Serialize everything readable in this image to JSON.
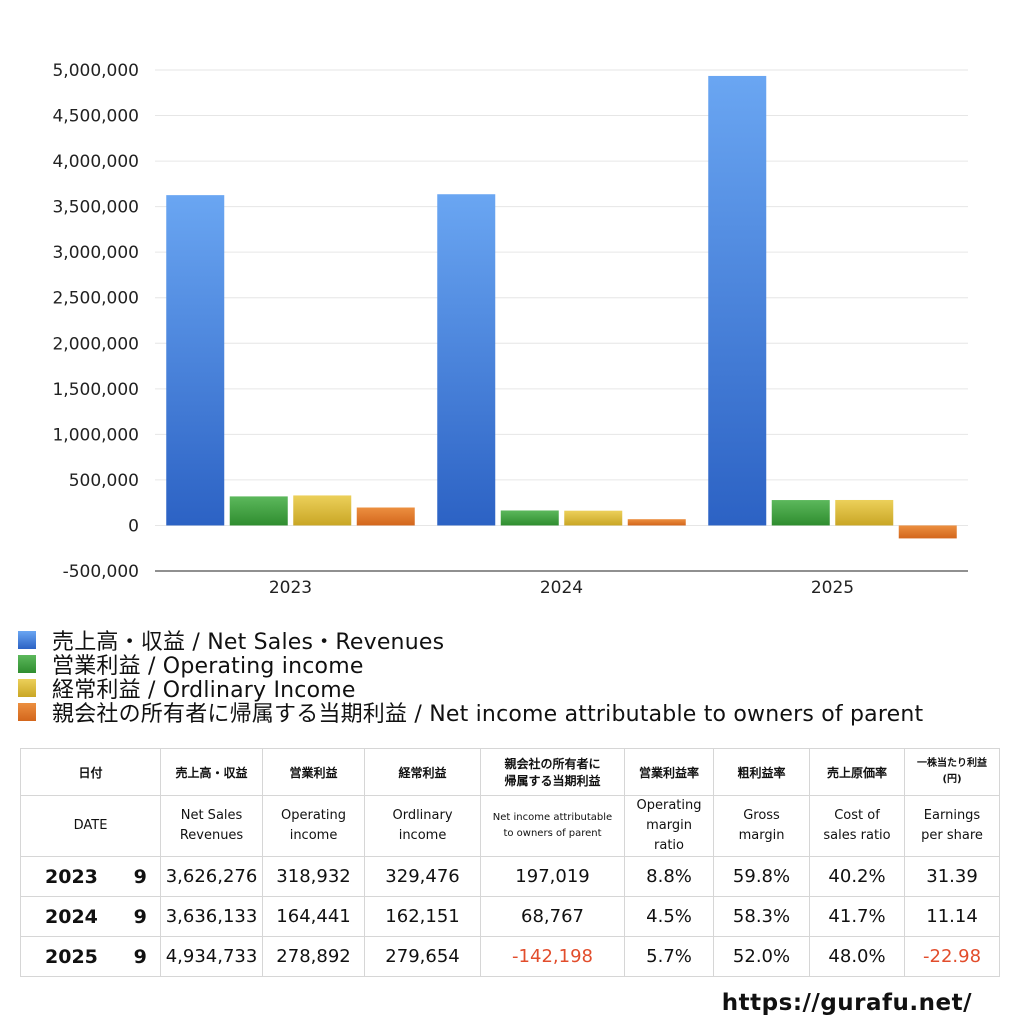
{
  "chart_data": {
    "type": "bar",
    "categories": [
      "2023",
      "2024",
      "2025"
    ],
    "series": [
      {
        "name": "売上高・収益 / Net Sales・Revenues",
        "values": [
          3626276,
          3636133,
          4934733
        ],
        "color_top": "#6aa6f2",
        "color_bottom": "#2c62c4"
      },
      {
        "name": "営業利益 / Operating income",
        "values": [
          318932,
          164441,
          278892
        ],
        "color_top": "#5cb85c",
        "color_bottom": "#2f8d2f"
      },
      {
        "name": "経常利益 / Ordlinary Income",
        "values": [
          329476,
          162151,
          279654
        ],
        "color_top": "#ecd05a",
        "color_bottom": "#c9a625"
      },
      {
        "name": "親会社の所有者に帰属する当期利益 / Net income attributable to owners of parent",
        "values": [
          197019,
          68767,
          -142198
        ],
        "color_top": "#ec8f40",
        "color_bottom": "#d3661c"
      }
    ],
    "ylim": [
      -500000,
      5000000
    ],
    "yticks": [
      -500000,
      0,
      500000,
      1000000,
      1500000,
      2000000,
      2500000,
      3000000,
      3500000,
      4000000,
      4500000,
      5000000
    ],
    "ytick_labels": [
      "-500,000",
      "0",
      "500,000",
      "1,000,000",
      "1,500,000",
      "2,000,000",
      "2,500,000",
      "3,000,000",
      "3,500,000",
      "4,000,000",
      "4,500,000",
      "5,000,000"
    ],
    "grid": true,
    "legend_position": "bottom-left"
  },
  "table": {
    "header_jp": {
      "date": "日付",
      "sales": "売上高・収益",
      "op": "営業利益",
      "ord": "経常利益",
      "net_l1": "親会社の所有者に",
      "net_l2": "帰属する当期利益",
      "opm": "営業利益率",
      "gross": "粗利益率",
      "cost": "売上原価率",
      "eps_l1": "一株当たり利益",
      "eps_l2": "(円)"
    },
    "header_en": {
      "date": "DATE",
      "sales_l1": "Net Sales",
      "sales_l2": "Revenues",
      "op_l1": "Operating",
      "op_l2": "income",
      "ord_l1": "Ordlinary",
      "ord_l2": "income",
      "net_l1": "Net income attributable",
      "net_l2": "to owners of parent",
      "opm_l1": "Operating",
      "opm_l2": "margin",
      "opm_l3": "ratio",
      "gross_l1": "Gross",
      "gross_l2": "margin",
      "cost_l1": "Cost of",
      "cost_l2": "sales ratio",
      "eps_l1": "Earnings",
      "eps_l2": "per share"
    },
    "rows": [
      {
        "year": "2023",
        "month": "9",
        "sales": "3,626,276",
        "op": "318,932",
        "ord": "329,476",
        "net": "197,019",
        "opm": "8.8%",
        "gross": "59.8%",
        "cost": "40.2%",
        "eps": "31.39"
      },
      {
        "year": "2024",
        "month": "9",
        "sales": "3,636,133",
        "op": "164,441",
        "ord": "162,151",
        "net": "68,767",
        "opm": "4.5%",
        "gross": "58.3%",
        "cost": "41.7%",
        "eps": "11.14"
      },
      {
        "year": "2025",
        "month": "9",
        "sales": "4,934,733",
        "op": "278,892",
        "ord": "279,654",
        "net": "-142,198",
        "opm": "5.7%",
        "gross": "52.0%",
        "cost": "48.0%",
        "eps": "-22.98"
      }
    ],
    "negative_color": "#e24d2c"
  },
  "footer": {
    "url": "https://gurafu.net/"
  }
}
